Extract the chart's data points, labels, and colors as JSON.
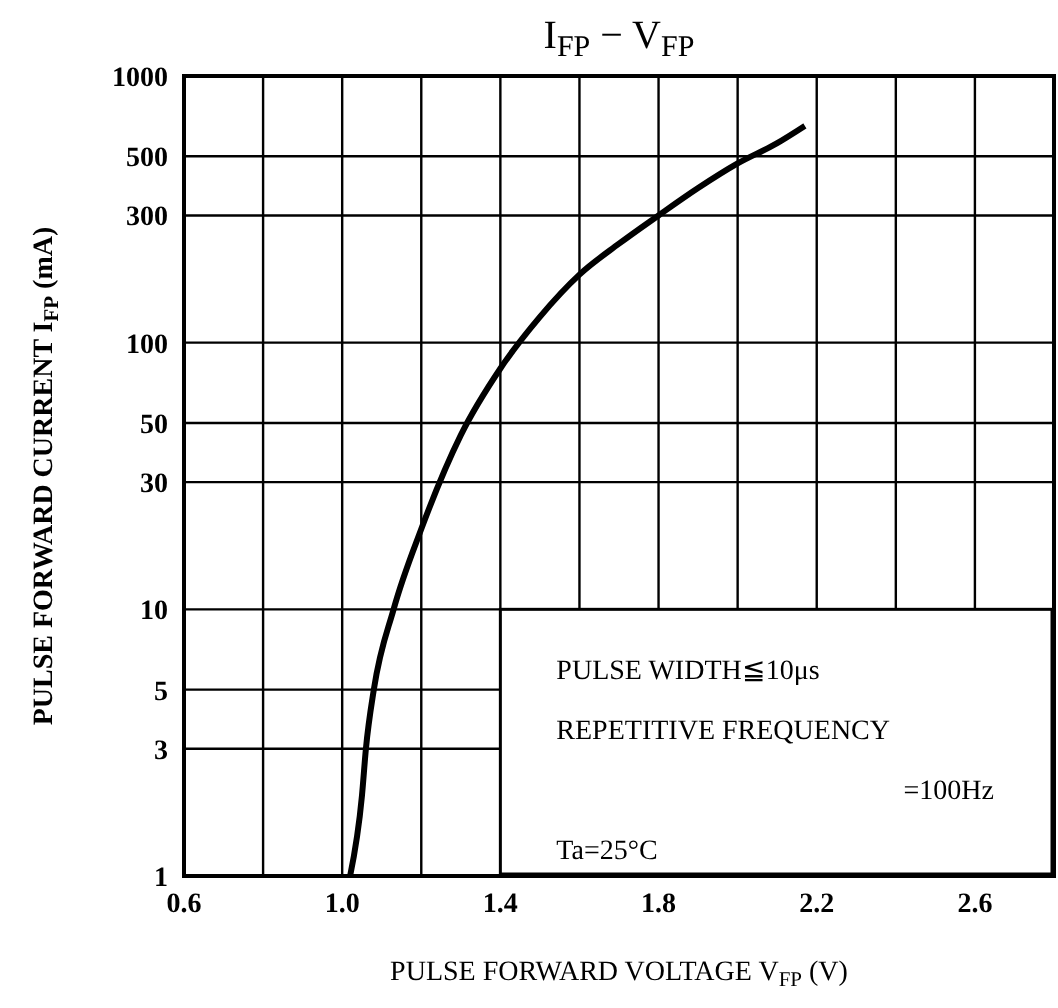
{
  "chart_data": {
    "type": "line",
    "title": "I$_{FP}$ − V$_{FP}$",
    "xlabel": "PULSE FORWARD VOLTAGE  V$_{FP}$  (V)",
    "ylabel": "PULSE FORWARD CURRENT  I$_{FP}$  (mA)",
    "annotations": [
      "PULSE WIDTH≦10μs",
      "REPETITIVE FREQUENCY",
      "=100Hz",
      "Ta=25°C"
    ],
    "x": [
      1.02,
      1.05,
      1.06,
      1.08,
      1.13,
      1.2,
      1.3,
      1.4,
      1.5,
      1.6,
      1.7,
      1.8,
      1.9,
      2.0,
      2.1,
      2.17
    ],
    "series": [
      {
        "color": "#000000",
        "values": [
          1,
          2,
          3,
          5,
          10,
          20,
          45,
          80,
          125,
          180,
          235,
          300,
          380,
          470,
          560,
          650
        ]
      }
    ],
    "xlim": [
      0.6,
      2.8
    ],
    "xticks": [
      0.6,
      {
        "value": 0.8,
        "label": null
      },
      {
        "value": 1.0,
        "label": "1.0"
      },
      {
        "value": 1.2,
        "label": null
      },
      1.4,
      {
        "value": 1.6,
        "label": null
      },
      1.8,
      {
        "value": 2.0,
        "label": null
      },
      2.2,
      {
        "value": 2.4,
        "label": null
      },
      2.6
    ],
    "ylim": [
      1,
      1000
    ],
    "yticks": [
      1,
      3,
      5,
      10,
      30,
      50,
      100,
      300,
      500,
      1000
    ],
    "log": "y",
    "grid": true,
    "legend": false,
    "marker": "none",
    "line_style": "solid"
  }
}
